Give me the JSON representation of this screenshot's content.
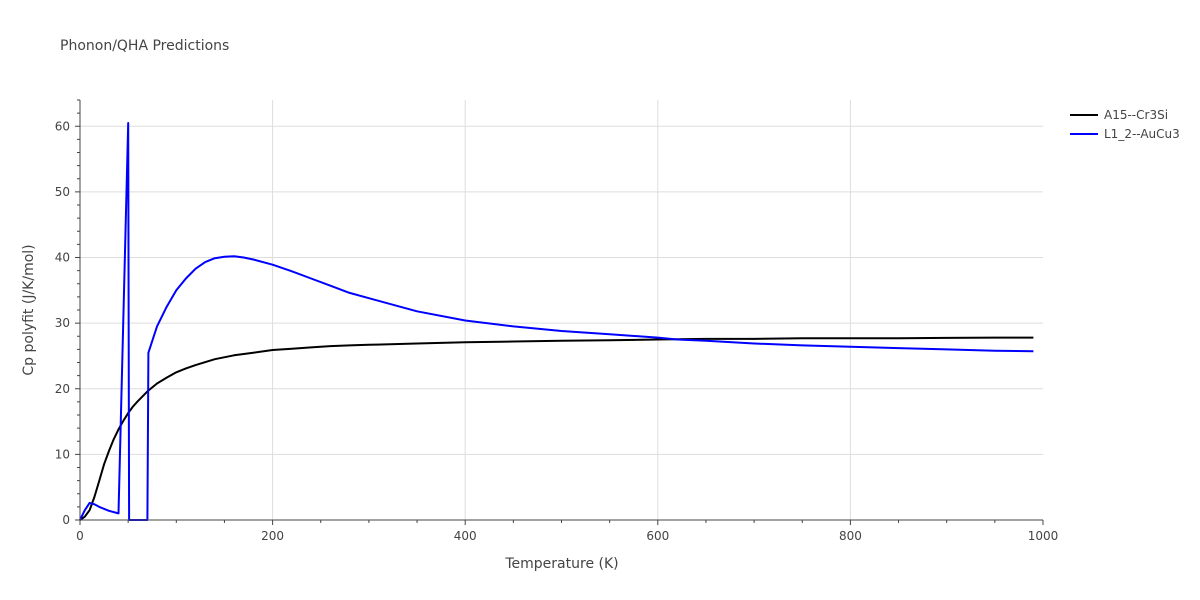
{
  "chart_data": {
    "type": "line",
    "title": "Phonon/QHA Predictions",
    "xlabel": "Temperature (K)",
    "ylabel": "Cp polyfit (J/K/mol)",
    "xlim": [
      0,
      1000
    ],
    "ylim": [
      0,
      64
    ],
    "x_ticks": [
      0,
      200,
      400,
      600,
      800,
      1000
    ],
    "x_tick_labels": [
      "0",
      "200",
      "400",
      "600",
      "800",
      "1000"
    ],
    "y_ticks": [
      0,
      10,
      20,
      30,
      40,
      50,
      60
    ],
    "y_tick_labels": [
      "0",
      "10",
      "20",
      "30",
      "40",
      "50",
      "60"
    ],
    "grid": true,
    "legend_position": "top-right",
    "series": [
      {
        "name": "A15--Cr3Si",
        "color": "#000000",
        "x": [
          0,
          5,
          10,
          15,
          20,
          25,
          30,
          35,
          40,
          45,
          50,
          55,
          60,
          70,
          80,
          90,
          100,
          110,
          120,
          140,
          160,
          180,
          200,
          220,
          240,
          260,
          280,
          300,
          350,
          400,
          450,
          500,
          550,
          600,
          650,
          700,
          750,
          800,
          850,
          900,
          950,
          990
        ],
        "y": [
          0,
          0.5,
          1.5,
          3.5,
          6,
          8.5,
          10.5,
          12.3,
          13.8,
          15.1,
          16.3,
          17.3,
          18.1,
          19.6,
          20.8,
          21.7,
          22.5,
          23.1,
          23.6,
          24.5,
          25.1,
          25.5,
          25.9,
          26.1,
          26.3,
          26.5,
          26.6,
          26.7,
          26.9,
          27.1,
          27.2,
          27.3,
          27.4,
          27.5,
          27.6,
          27.6,
          27.7,
          27.7,
          27.7,
          27.75,
          27.8,
          27.8
        ]
      },
      {
        "name": "L1_2--AuCu3",
        "color": "#0000ff",
        "x": [
          0,
          5,
          10,
          15,
          20,
          30,
          40,
          50,
          51,
          70,
          71,
          80,
          90,
          100,
          110,
          120,
          130,
          140,
          150,
          160,
          170,
          180,
          200,
          220,
          240,
          260,
          280,
          300,
          350,
          400,
          450,
          500,
          550,
          600,
          620,
          650,
          700,
          750,
          800,
          850,
          900,
          950,
          990
        ],
        "y": [
          0,
          1.5,
          2.6,
          2.4,
          2.0,
          1.4,
          1.0,
          60.5,
          0,
          0,
          25.5,
          29.5,
          32.5,
          35.0,
          36.8,
          38.3,
          39.3,
          39.9,
          40.1,
          40.2,
          40.0,
          39.7,
          38.9,
          37.9,
          36.8,
          35.7,
          34.6,
          33.8,
          31.8,
          30.4,
          29.5,
          28.8,
          28.3,
          27.8,
          27.5,
          27.3,
          26.9,
          26.6,
          26.4,
          26.2,
          26.0,
          25.8,
          25.7
        ]
      }
    ]
  }
}
